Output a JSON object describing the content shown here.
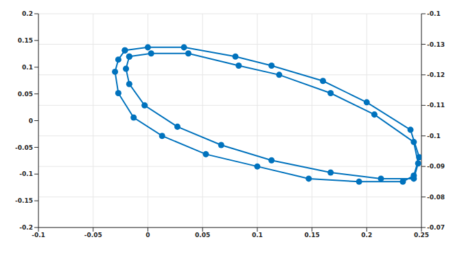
{
  "chart_data": {
    "type": "line",
    "grid": true,
    "marker": "circle",
    "line_style": "solid",
    "xlim": [
      -0.1,
      0.25
    ],
    "xticks": [
      -0.1,
      -0.05,
      0,
      0.05,
      0.1,
      0.15,
      0.2,
      0.25
    ],
    "ylim": [
      -0.2,
      0.2
    ],
    "yticks": [
      -0.2,
      -0.15,
      -0.1,
      -0.05,
      0,
      0.05,
      0.1,
      0.15,
      0.2
    ],
    "y2lim": [
      -0.14,
      -0.07
    ],
    "y2ticks": [
      {
        "value": -0.14,
        "label": "-0.1"
      },
      -0.13,
      -0.12,
      -0.11,
      -0.1,
      -0.09,
      -0.08,
      -0.07
    ],
    "series": [
      {
        "color": "#0072bd",
        "axis": "y2",
        "x": [
          -0.021,
          0.0,
          0.033,
          0.08,
          0.113,
          0.16,
          0.2,
          0.24,
          0.248,
          0.243,
          0.233,
          0.193,
          0.147,
          0.1,
          0.053,
          0.013,
          -0.013,
          -0.027,
          -0.03,
          -0.027,
          -0.021
        ],
        "values": [
          -0.128,
          -0.129,
          -0.129,
          -0.126,
          -0.123,
          -0.118,
          -0.111,
          -0.102,
          -0.093,
          -0.087,
          -0.085,
          -0.085,
          -0.086,
          -0.09,
          -0.094,
          -0.1,
          -0.106,
          -0.114,
          -0.121,
          -0.125,
          -0.128
        ]
      },
      {
        "color": "#0072bd",
        "axis": "y2",
        "x": [
          -0.017,
          0.003,
          0.037,
          0.083,
          0.12,
          0.167,
          0.207,
          0.243,
          0.247,
          0.243,
          0.213,
          0.167,
          0.113,
          0.067,
          0.027,
          -0.003,
          -0.017,
          -0.02,
          -0.017
        ],
        "values": [
          -0.126,
          -0.127,
          -0.127,
          -0.123,
          -0.12,
          -0.114,
          -0.107,
          -0.098,
          -0.091,
          -0.086,
          -0.086,
          -0.088,
          -0.092,
          -0.097,
          -0.103,
          -0.11,
          -0.117,
          -0.122,
          -0.126
        ]
      }
    ]
  }
}
